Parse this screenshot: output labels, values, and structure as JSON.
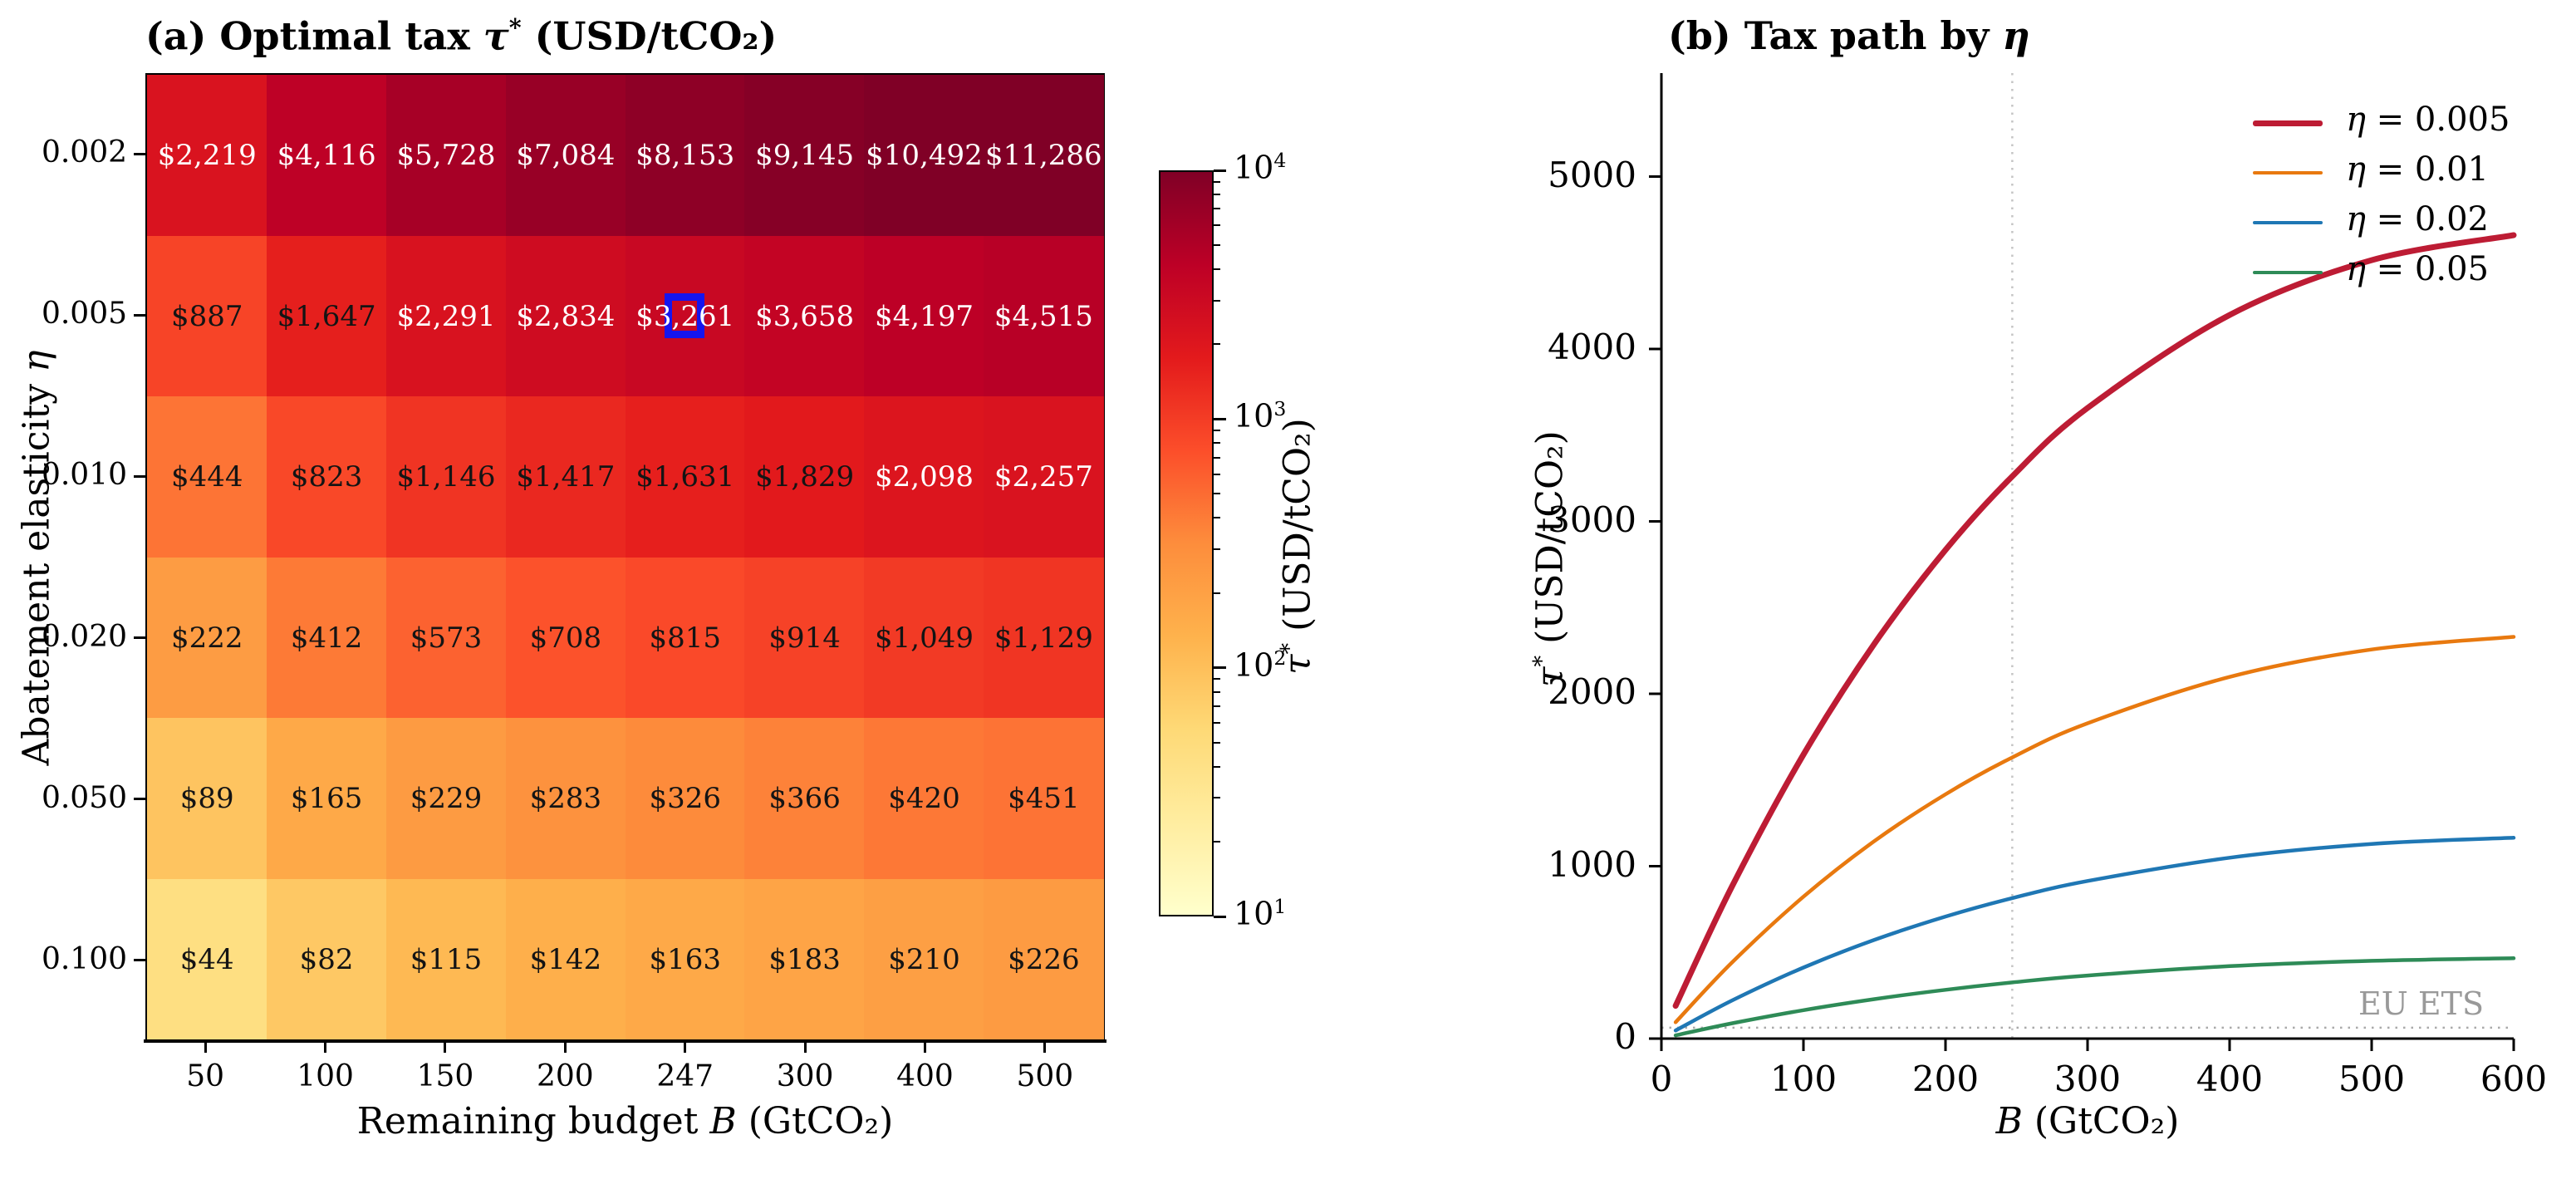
{
  "figure": {
    "background": "#ffffff"
  },
  "chart_data": [
    {
      "type": "heatmap",
      "title": "(a) Optimal tax τ* (USD/tCO₂)",
      "xlabel": "Remaining budget B (GtCO₂)",
      "ylabel": "Abatement elasticity η",
      "x_categories": [
        "50",
        "100",
        "150",
        "200",
        "247",
        "300",
        "400",
        "500"
      ],
      "y_categories": [
        "0.002",
        "0.005",
        "0.010",
        "0.020",
        "0.050",
        "0.100"
      ],
      "values": [
        [
          2219,
          4116,
          5728,
          7084,
          8153,
          9145,
          10492,
          11286
        ],
        [
          887,
          1647,
          2291,
          2834,
          3261,
          3658,
          4197,
          4515
        ],
        [
          444,
          823,
          1146,
          1417,
          1631,
          1829,
          2098,
          2257
        ],
        [
          222,
          412,
          573,
          708,
          815,
          914,
          1049,
          1129
        ],
        [
          89,
          165,
          229,
          283,
          326,
          366,
          420,
          451
        ],
        [
          44,
          82,
          115,
          142,
          163,
          183,
          210,
          226
        ]
      ],
      "value_prefix": "$",
      "text_white_threshold": 2000,
      "colormap": {
        "name": "YlOrRd",
        "stops": [
          "#ffffcc",
          "#ffeda0",
          "#fed976",
          "#feb24c",
          "#fd8d3c",
          "#fc4e2a",
          "#e31a1c",
          "#bd0026",
          "#800026"
        ]
      },
      "norm": {
        "type": "log",
        "vmin": 10,
        "vmax": 10000
      },
      "colorbar": {
        "label": "τ* (USD/tCO₂)",
        "tick_exponents": [
          1,
          2,
          3,
          4
        ]
      },
      "highlight_cell": {
        "row": 1,
        "col": 4,
        "row_label": "0.005",
        "col_label": "247",
        "edge_color": "#1515ee"
      }
    },
    {
      "type": "line",
      "title": "(b) Tax path by η",
      "xlabel": "B (GtCO₂)",
      "ylabel": "τ* (USD/tCO₂)",
      "xlim": [
        0,
        600
      ],
      "ylim": [
        0,
        5600
      ],
      "xticks": [
        0,
        100,
        200,
        300,
        400,
        500,
        600
      ],
      "yticks": [
        0,
        1000,
        2000,
        3000,
        4000,
        5000
      ],
      "grid": false,
      "legend_position": "upper right",
      "x": [
        10,
        50,
        100,
        150,
        200,
        247,
        300,
        400,
        500,
        600
      ],
      "series": [
        {
          "name": "η = 0.005",
          "color": "#bd1c34",
          "linewidth": 7,
          "values": [
            190,
            887,
            1647,
            2291,
            2834,
            3261,
            3658,
            4197,
            4515,
            4660
          ]
        },
        {
          "name": "η = 0.01",
          "color": "#e8790f",
          "linewidth": 4.5,
          "values": [
            95,
            444,
            823,
            1146,
            1417,
            1631,
            1829,
            2098,
            2257,
            2330
          ]
        },
        {
          "name": "η = 0.02",
          "color": "#1f77b4",
          "linewidth": 4.5,
          "values": [
            47,
            222,
            412,
            573,
            708,
            815,
            914,
            1049,
            1129,
            1165
          ]
        },
        {
          "name": "η = 0.05",
          "color": "#2e8b57",
          "linewidth": 4.5,
          "values": [
            19,
            89,
            165,
            229,
            283,
            326,
            366,
            420,
            451,
            466
          ]
        }
      ],
      "annotations": {
        "hline": {
          "y": 63,
          "label": "EU ETS",
          "color": "#aaaaaa",
          "label_color": "#999999",
          "style": "dotted"
        },
        "vline": {
          "x": 247,
          "color": "#c4c4c4",
          "style": "dotted"
        }
      }
    }
  ]
}
